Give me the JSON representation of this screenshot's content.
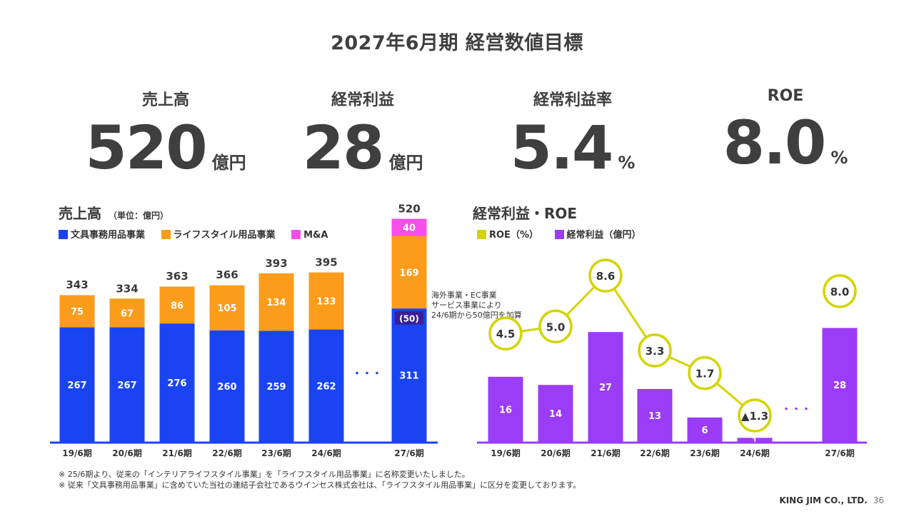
{
  "page_title": "2027年6月期 経営数値目標",
  "kpis": [
    {
      "label": "売上高",
      "value": "520",
      "unit": "億円"
    },
    {
      "label": "経常利益",
      "value": "28",
      "unit": "億円"
    },
    {
      "label": "経常利益率",
      "value": "5.4",
      "unit": "%"
    },
    {
      "label": "ROE",
      "value": "8.0",
      "unit": "%"
    }
  ],
  "chart_data": [
    {
      "type": "bar",
      "stacked": true,
      "title": "売上高",
      "unit_label": "（単位：億円）",
      "categories": [
        "19/6期",
        "20/6期",
        "21/6期",
        "22/6期",
        "23/6期",
        "24/6期",
        "27/6期"
      ],
      "series": [
        {
          "name": "文具事務用品事業",
          "color": "#1a44f2",
          "values": [
            267,
            267,
            276,
            260,
            259,
            262,
            311
          ]
        },
        {
          "name": "ライフスタイル用品事業",
          "color": "#fb9c1b",
          "values": [
            75,
            67,
            86,
            105,
            134,
            133,
            169
          ]
        },
        {
          "name": "M&A",
          "color": "#f74ee9",
          "values": [
            null,
            null,
            null,
            null,
            null,
            null,
            40
          ]
        }
      ],
      "totals": [
        343,
        334,
        363,
        366,
        393,
        395,
        520
      ],
      "annotation": {
        "category": "27/6期",
        "value_label": "(50)",
        "value": 50,
        "color": "#3a1f9a",
        "text": [
          "海外事業・EC事業",
          "サービス事業により",
          "24/6期から50億円を加算"
        ]
      },
      "gap_marker": "・・・",
      "accent_color": "#1a44f2"
    },
    {
      "type": "bar+line",
      "title": "経常利益・ROE",
      "categories": [
        "19/6期",
        "20/6期",
        "21/6期",
        "22/6期",
        "23/6期",
        "24/6期",
        "27/6期"
      ],
      "legend": [
        {
          "name": "ROE（%）",
          "color": "#d4d400"
        },
        {
          "name": "経常利益（億円）",
          "color": "#9b3cf7"
        }
      ],
      "bars": {
        "name": "経常利益（億円）",
        "color": "#9b3cf7",
        "values": [
          16,
          14,
          27,
          13,
          6,
          1,
          28
        ]
      },
      "line": {
        "name": "ROE（%）",
        "color": "#d4d400",
        "values": [
          4.5,
          5.0,
          8.6,
          3.3,
          1.7,
          -1.3,
          8.0
        ],
        "labels": [
          "4.5",
          "5.0",
          "8.6",
          "3.3",
          "1.7",
          "▲1.3",
          "8.0"
        ],
        "connected_through": "24/6期"
      },
      "gap_marker": "・・・",
      "accent_color": "#9b3cf7"
    }
  ],
  "notes": [
    "※ 25/6期より、従来の「インテリアライフスタイル事業」を「ライフスタイル用品事業」に名称変更いたしました。",
    "※ 従来「文具事務用品事業」に含めていた当社の連結子会社であるウインセス株式会社は、「ライフスタイル用品事業」に区分を変更しております。"
  ],
  "footer": {
    "company": "KING JIM CO., LTD.",
    "page": "36"
  }
}
